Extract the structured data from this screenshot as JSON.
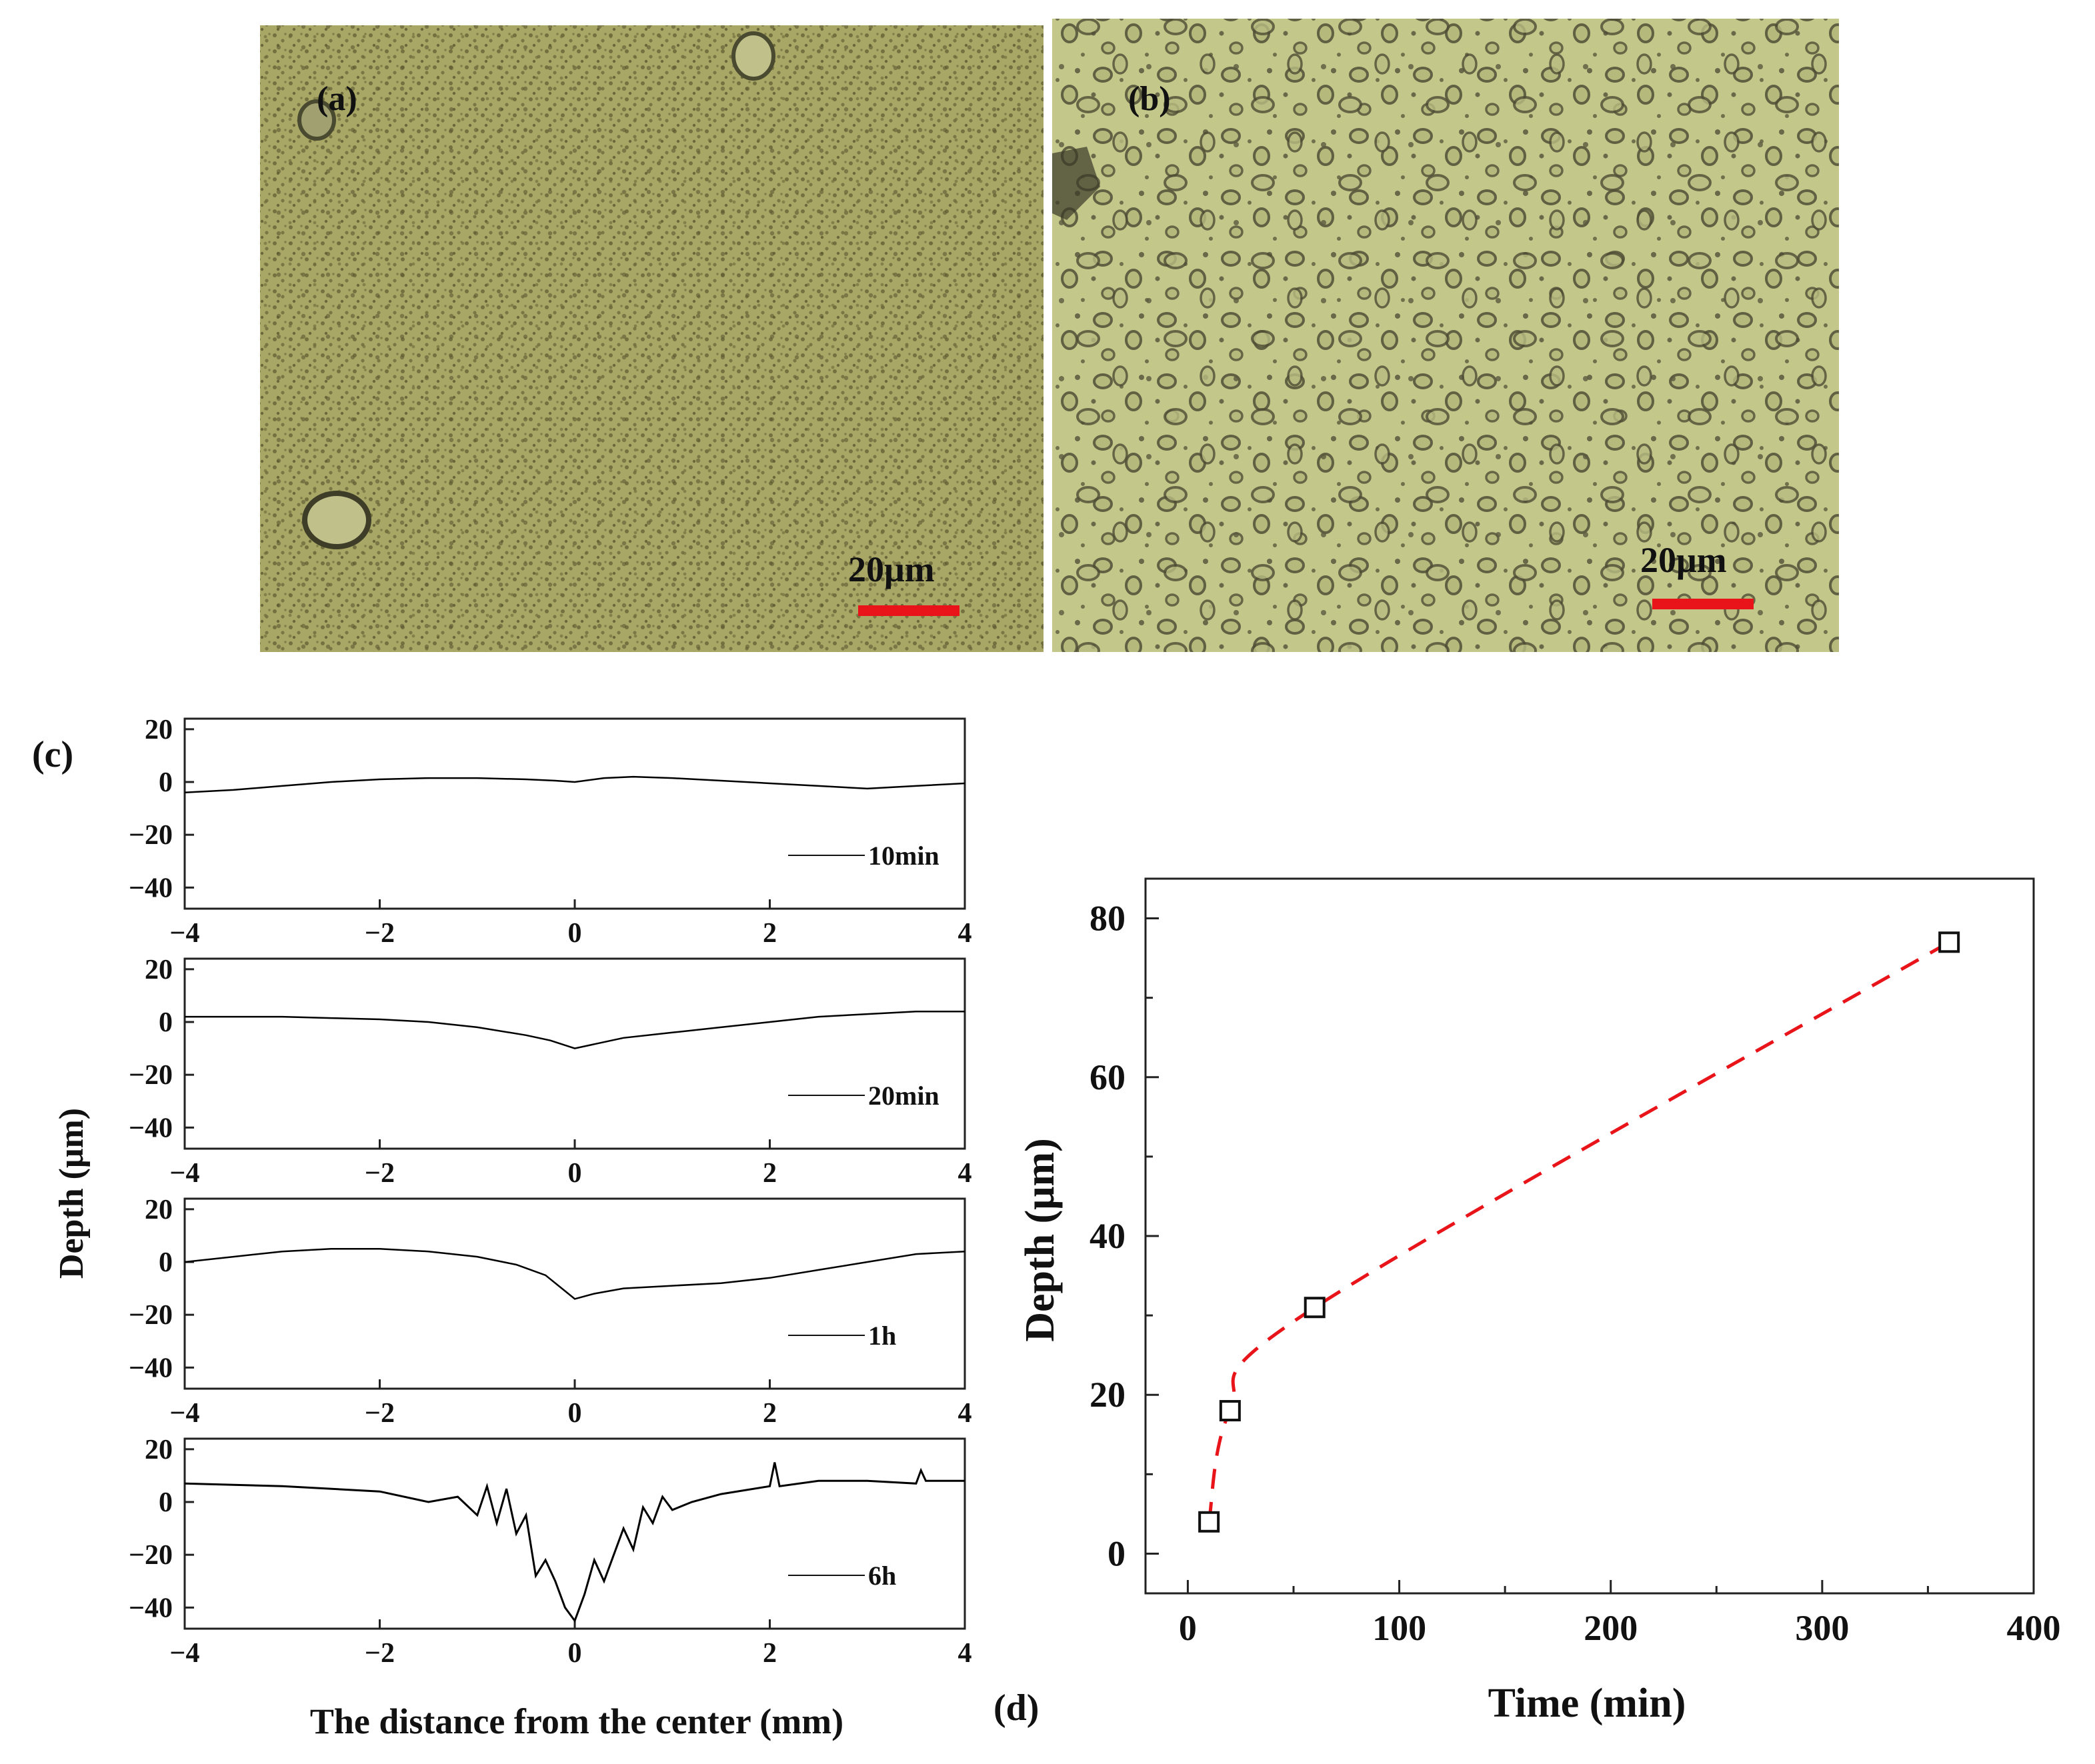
{
  "panels": {
    "a": {
      "label": "(a)",
      "scalebar": "20μm"
    },
    "b": {
      "label": "(b)",
      "scalebar": "20μm"
    },
    "c": {
      "label": "(c)"
    },
    "d": {
      "label": "(d)"
    }
  },
  "colors": {
    "micrograph_a": "#a8a766",
    "micrograph_b": "#c3c78a",
    "scalebar": "#e8141a",
    "fit_line": "#e8141a",
    "profile_line": "#000000"
  },
  "chart_data": [
    {
      "type": "line",
      "panel": "c",
      "xlabel": "The distance from the center (mm)",
      "ylabel": "Depth  (μm)",
      "xlim": [
        -4,
        4
      ],
      "ylim": [
        -48,
        24
      ],
      "xticks": [
        -4,
        -2,
        0,
        2,
        4
      ],
      "yticks": [
        20,
        0,
        -20,
        -40
      ],
      "subplots": [
        {
          "name": "10min",
          "x": [
            -4,
            -3.5,
            -3,
            -2.5,
            -2,
            -1.5,
            -1,
            -0.5,
            -0.2,
            0,
            0.3,
            0.6,
            1,
            1.5,
            2,
            2.5,
            3,
            3.5,
            4
          ],
          "y": [
            -4,
            -3,
            -1.5,
            0,
            1,
            1.5,
            1.5,
            1,
            0.5,
            0,
            1.5,
            2,
            1.5,
            0.5,
            -0.5,
            -1.5,
            -2.5,
            -1.5,
            -0.5
          ]
        },
        {
          "name": "20min",
          "x": [
            -4,
            -3.5,
            -3,
            -2.5,
            -2,
            -1.5,
            -1,
            -0.5,
            -0.25,
            0,
            0.25,
            0.5,
            1,
            1.5,
            2,
            2.5,
            3,
            3.5,
            4
          ],
          "y": [
            2,
            2,
            2,
            1.5,
            1,
            0,
            -2,
            -5,
            -7,
            -10,
            -8,
            -6,
            -4,
            -2,
            0,
            2,
            3,
            4,
            4
          ]
        },
        {
          "name": "1h",
          "x": [
            -4,
            -3.5,
            -3,
            -2.5,
            -2,
            -1.5,
            -1,
            -0.6,
            -0.3,
            -0.1,
            0,
            0.2,
            0.5,
            1,
            1.5,
            2,
            2.5,
            3,
            3.5,
            4
          ],
          "y": [
            0,
            2,
            4,
            5,
            5,
            4,
            2,
            -1,
            -5,
            -11,
            -14,
            -12,
            -10,
            -9,
            -8,
            -6,
            -3,
            0,
            3,
            4
          ]
        },
        {
          "name": "6h",
          "x": [
            -4,
            -3,
            -2,
            -1.5,
            -1.2,
            -1.0,
            -0.9,
            -0.8,
            -0.7,
            -0.6,
            -0.5,
            -0.4,
            -0.3,
            -0.2,
            -0.1,
            0,
            0.1,
            0.2,
            0.3,
            0.4,
            0.5,
            0.6,
            0.7,
            0.8,
            0.9,
            1.0,
            1.2,
            1.5,
            2,
            2.05,
            2.1,
            2.5,
            3,
            3.5,
            3.55,
            3.6,
            4
          ],
          "y": [
            7,
            6,
            4,
            0,
            2,
            -5,
            6,
            -8,
            5,
            -12,
            -5,
            -28,
            -22,
            -30,
            -40,
            -45,
            -35,
            -22,
            -30,
            -20,
            -10,
            -18,
            -2,
            -8,
            2,
            -3,
            0,
            3,
            6,
            15,
            6,
            8,
            8,
            7,
            12,
            8,
            8
          ]
        }
      ]
    },
    {
      "type": "scatter",
      "panel": "d",
      "xlabel": "Time (min)",
      "ylabel": "Depth (μm)",
      "xlim": [
        -20,
        400
      ],
      "ylim": [
        -5,
        85
      ],
      "xticks": [
        0,
        100,
        200,
        300,
        400
      ],
      "yticks": [
        0,
        20,
        40,
        60,
        80
      ],
      "x": [
        10,
        20,
        60,
        360
      ],
      "y": [
        4,
        18,
        31,
        77
      ],
      "fit_line": "dashed red curve through points"
    }
  ]
}
